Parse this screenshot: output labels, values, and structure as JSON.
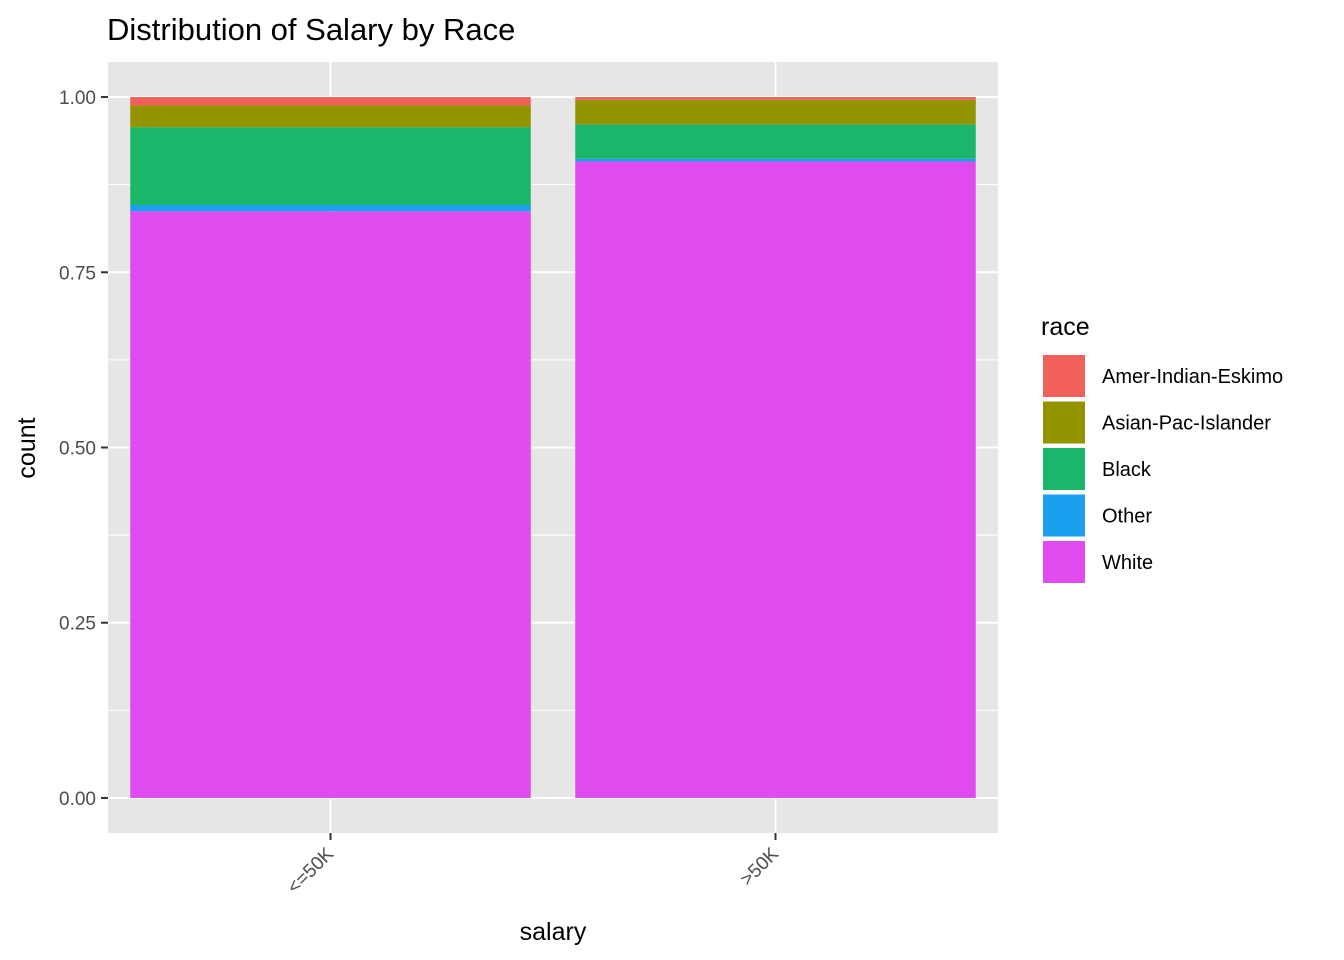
{
  "chart_data": {
    "type": "bar",
    "stacked": true,
    "title": "Distribution of Salary by Race",
    "xlabel": "salary",
    "ylabel": "count",
    "ylim": [
      -0.05,
      1.05
    ],
    "yticks": [
      "0.00",
      "0.25",
      "0.50",
      "0.75",
      "1.00"
    ],
    "ytick_values": [
      0,
      0.25,
      0.5,
      0.75,
      1.0
    ],
    "grid": true,
    "categories": [
      "<=50K",
      ">50K"
    ],
    "legend": {
      "title": "race",
      "position": "right"
    },
    "series": [
      {
        "name": "White",
        "color": "#E04BEF",
        "values": [
          0.837,
          0.908
        ]
      },
      {
        "name": "Other",
        "color": "#1AA0EE",
        "values": [
          0.009,
          0.004
        ]
      },
      {
        "name": "Black",
        "color": "#1CB66B",
        "values": [
          0.111,
          0.049
        ]
      },
      {
        "name": "Asian-Pac-Islander",
        "color": "#939400",
        "values": [
          0.031,
          0.035
        ]
      },
      {
        "name": "Amer-Indian-Eskimo",
        "color": "#F2605A",
        "values": [
          0.012,
          0.004
        ]
      }
    ],
    "legend_order": [
      "Amer-Indian-Eskimo",
      "Asian-Pac-Islander",
      "Black",
      "Other",
      "White"
    ]
  }
}
